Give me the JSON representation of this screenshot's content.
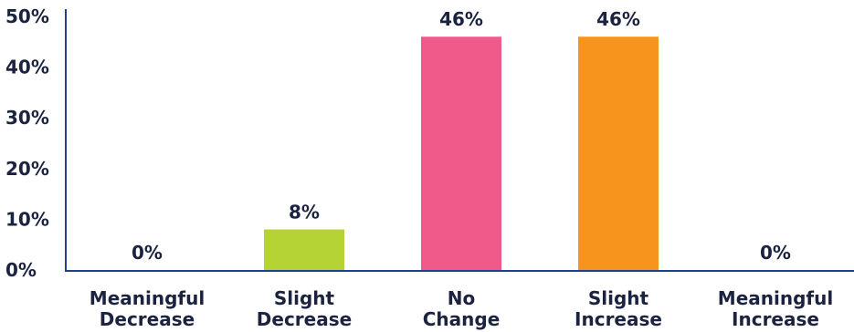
{
  "chart_data": {
    "type": "bar",
    "categories": [
      [
        "Meaningful",
        "Decrease"
      ],
      [
        "Slight",
        "Decrease"
      ],
      [
        "No",
        "Change"
      ],
      [
        "Slight",
        "Increase"
      ],
      [
        "Meaningful",
        "Increase"
      ]
    ],
    "values": [
      0,
      8,
      46,
      46,
      0
    ],
    "data_labels": [
      "0%",
      "8%",
      "46%",
      "46%",
      "0%"
    ],
    "bar_colors": [
      "#b5d334",
      "#b5d334",
      "#f05a8a",
      "#f7941d",
      "#f7941d"
    ],
    "ylim": [
      0,
      50
    ],
    "yticks": [
      0,
      10,
      20,
      30,
      40,
      50
    ],
    "ytick_labels": [
      "0%",
      "10%",
      "20%",
      "30%",
      "40%",
      "50%"
    ],
    "axis_color": "#1f3f8f",
    "text_color": "#1c2340",
    "title": "",
    "xlabel": "",
    "ylabel": "",
    "grid": false,
    "legend": "none"
  }
}
